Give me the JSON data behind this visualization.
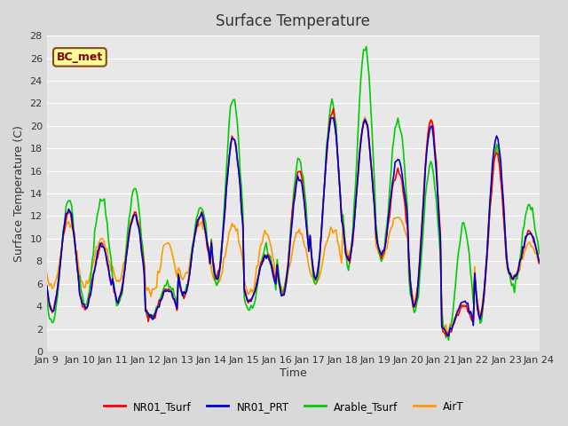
{
  "title": "Surface Temperature",
  "ylabel": "Surface Temperature (C)",
  "xlabel": "Time",
  "ylim": [
    0,
    28
  ],
  "annotation_text": "BC_met",
  "annotation_bg": "#ffff99",
  "annotation_border": "#8b4513",
  "annotation_text_color": "#8b0000",
  "x_tick_labels": [
    "Jan 9",
    "Jan 10",
    "Jan 11",
    "Jan 12",
    "Jan 13",
    "Jan 14",
    "Jan 15",
    "Jan 16",
    "Jan 17",
    "Jan 18",
    "Jan 19",
    "Jan 20",
    "Jan 21",
    "Jan 22",
    "Jan 23",
    "Jan 24"
  ],
  "series": {
    "NR01_Tsurf": {
      "color": "#ff0000",
      "lw": 1.2
    },
    "NR01_PRT": {
      "color": "#0000cc",
      "lw": 1.2
    },
    "Arable_Tsurf": {
      "color": "#00cc00",
      "lw": 1.2
    },
    "AirT": {
      "color": "#ff9900",
      "lw": 1.2
    }
  },
  "day_peaks_NR01": [
    12.5,
    9.5,
    12.2,
    5.5,
    12.0,
    19.0,
    8.5,
    16.0,
    21.0,
    20.5,
    16.0,
    20.5,
    4.0,
    17.5,
    10.5
  ],
  "day_lows_NR01": [
    3.5,
    3.8,
    4.5,
    3.0,
    5.0,
    6.5,
    4.5,
    5.0,
    6.5,
    8.0,
    8.5,
    4.0,
    1.5,
    3.0,
    6.5
  ],
  "day_peaks_PRT": [
    12.5,
    9.5,
    12.0,
    5.5,
    12.2,
    19.0,
    8.5,
    15.5,
    21.0,
    20.5,
    17.0,
    20.0,
    4.5,
    19.0,
    10.5
  ],
  "day_lows_PRT": [
    3.5,
    3.8,
    4.5,
    3.0,
    5.0,
    6.5,
    4.5,
    5.0,
    6.5,
    8.0,
    8.5,
    4.0,
    1.5,
    3.0,
    6.5
  ],
  "day_peaks_Arab": [
    13.3,
    13.5,
    14.3,
    6.0,
    13.0,
    22.5,
    9.0,
    17.0,
    22.0,
    27.0,
    20.8,
    16.5,
    11.0,
    18.0,
    13.0
  ],
  "day_lows_Arab": [
    2.5,
    4.3,
    4.0,
    3.0,
    4.8,
    5.8,
    3.5,
    5.0,
    5.8,
    7.5,
    8.0,
    3.5,
    1.0,
    2.8,
    5.8
  ],
  "day_peaks_AirT": [
    11.5,
    9.8,
    12.2,
    9.5,
    11.5,
    11.2,
    10.5,
    10.8,
    11.0,
    20.5,
    12.0,
    20.5,
    4.0,
    18.0,
    9.5
  ],
  "day_lows_AirT": [
    5.5,
    5.8,
    6.0,
    5.0,
    6.5,
    6.0,
    5.0,
    5.5,
    6.0,
    8.5,
    8.5,
    4.5,
    2.0,
    3.5,
    6.5
  ]
}
